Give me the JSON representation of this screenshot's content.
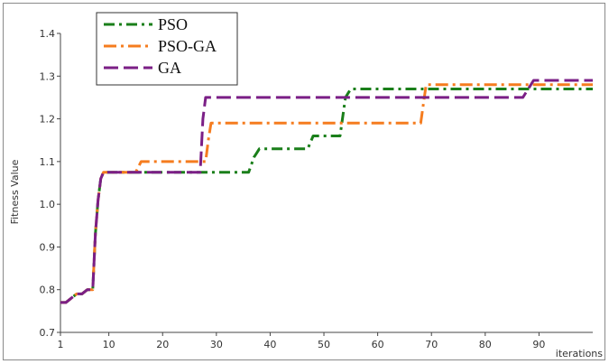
{
  "chart_data": {
    "type": "line",
    "title": "",
    "xlabel": "iterations",
    "ylabel": "Fitness Value",
    "xlim": [
      1,
      100
    ],
    "ylim": [
      0.7,
      1.4
    ],
    "x_ticks": [
      1,
      10,
      20,
      30,
      40,
      50,
      60,
      70,
      80,
      90
    ],
    "y_ticks": [
      0.7,
      0.8,
      0.9,
      1.0,
      1.1,
      1.2,
      1.3,
      1.4
    ],
    "legend_position": "top-left",
    "grid": false,
    "series": [
      {
        "name": "PSO",
        "color": "#1a7f1a",
        "dash": "dash-dot",
        "x": [
          1,
          2,
          3,
          4,
          5,
          6,
          7,
          7.5,
          8,
          8.5,
          9,
          15,
          20,
          28,
          36,
          37,
          37.5,
          38,
          47,
          48,
          53,
          54,
          55,
          70,
          88,
          90,
          100
        ],
        "y": [
          0.77,
          0.77,
          0.78,
          0.79,
          0.79,
          0.8,
          0.8,
          0.93,
          1.01,
          1.06,
          1.075,
          1.075,
          1.075,
          1.075,
          1.075,
          1.11,
          1.12,
          1.13,
          1.13,
          1.16,
          1.16,
          1.25,
          1.27,
          1.27,
          1.27,
          1.27,
          1.27
        ]
      },
      {
        "name": "PSO-GA",
        "color": "#f57c1f",
        "dash": "long-dash-dot",
        "x": [
          1,
          2,
          3,
          4,
          5,
          6,
          7,
          7.5,
          8,
          8.5,
          9,
          15,
          16,
          27,
          28,
          28.5,
          29,
          67,
          68,
          69,
          100
        ],
        "y": [
          0.77,
          0.77,
          0.78,
          0.79,
          0.79,
          0.8,
          0.8,
          0.93,
          1.01,
          1.06,
          1.075,
          1.075,
          1.1,
          1.1,
          1.1,
          1.15,
          1.19,
          1.19,
          1.19,
          1.28,
          1.28
        ]
      },
      {
        "name": "GA",
        "color": "#7b1f86",
        "dash": "long-dash",
        "x": [
          1,
          2,
          3,
          4,
          5,
          6,
          7,
          7.5,
          8,
          8.5,
          9,
          20,
          27,
          27.5,
          28,
          29,
          87,
          88,
          89,
          100
        ],
        "y": [
          0.77,
          0.77,
          0.78,
          0.79,
          0.79,
          0.8,
          0.8,
          0.93,
          1.01,
          1.06,
          1.075,
          1.075,
          1.075,
          1.2,
          1.25,
          1.25,
          1.25,
          1.27,
          1.29,
          1.29
        ]
      }
    ]
  }
}
